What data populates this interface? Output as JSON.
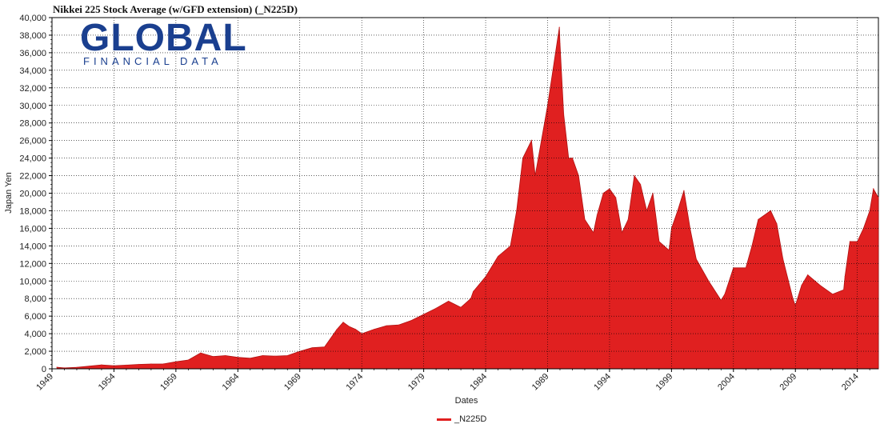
{
  "title": "Nikkei 225 Stock Average (w/GFD extension) (_N225D)",
  "logo": {
    "main": "GLOBAL",
    "sub": "FINANCIAL DATA"
  },
  "colors": {
    "series": "#e02020",
    "grid": "#000000",
    "text": "#222222",
    "logo": "#1a3f8f"
  },
  "chart_data": {
    "type": "area",
    "title": "Nikkei 225 Stock Average (w/GFD extension) (_N225D)",
    "xlabel": "Dates",
    "ylabel": "Japan Yen",
    "xlim": [
      1949,
      2015.7
    ],
    "ylim": [
      0,
      40000
    ],
    "grid": true,
    "legend_position": "bottom-center",
    "x_ticks": [
      "1949",
      "1954",
      "1959",
      "1964",
      "1969",
      "1974",
      "1979",
      "1984",
      "1989",
      "1994",
      "1999",
      "2004",
      "2009",
      "2014"
    ],
    "y_ticks": [
      "0",
      "2,000",
      "4,000",
      "6,000",
      "8,000",
      "10,000",
      "12,000",
      "14,000",
      "16,000",
      "18,000",
      "20,000",
      "22,000",
      "24,000",
      "26,000",
      "28,000",
      "30,000",
      "32,000",
      "34,000",
      "36,000",
      "38,000",
      "40,000"
    ],
    "series": [
      {
        "name": "_N225D",
        "x": [
          1949.4,
          1950,
          1951,
          1952,
          1953,
          1954,
          1955,
          1956,
          1957,
          1958,
          1959,
          1960,
          1961,
          1962,
          1963,
          1964,
          1965,
          1966,
          1967,
          1968,
          1969,
          1970,
          1971,
          1972,
          1972.5,
          1973,
          1973.5,
          1974,
          1974.8,
          1975,
          1976,
          1977,
          1978,
          1979,
          1980,
          1981,
          1982,
          1982.8,
          1983,
          1984,
          1985,
          1986,
          1986.5,
          1987,
          1987.7,
          1988,
          1989,
          1989.95,
          1990,
          1990.3,
          1990.7,
          1991,
          1991.5,
          1992,
          1992.7,
          1993,
          1993.5,
          1994,
          1994.5,
          1995,
          1995.5,
          1996,
          1996.5,
          1997,
          1997.5,
          1998,
          1998.8,
          1999,
          1999.5,
          2000,
          2000.5,
          2001,
          2002,
          2003,
          2003.3,
          2004,
          2005,
          2005.5,
          2006,
          2007,
          2007.5,
          2008,
          2008.8,
          2009,
          2009.5,
          2010,
          2011,
          2012,
          2012.9,
          2013,
          2013.4,
          2014,
          2014.5,
          2015,
          2015.3,
          2015.7
        ],
        "values": [
          170,
          100,
          160,
          300,
          450,
          350,
          420,
          500,
          550,
          560,
          800,
          1000,
          1800,
          1400,
          1500,
          1300,
          1200,
          1500,
          1450,
          1500,
          2000,
          2400,
          2500,
          4500,
          5300,
          4800,
          4500,
          4000,
          4400,
          4500,
          4900,
          5000,
          5500,
          6200,
          6900,
          7700,
          7000,
          8000,
          8800,
          10500,
          12800,
          14000,
          18000,
          24000,
          26000,
          22000,
          30000,
          38900,
          37000,
          29000,
          24000,
          24000,
          22000,
          17000,
          15500,
          17500,
          20000,
          20500,
          19500,
          15500,
          17000,
          22000,
          21000,
          18000,
          20000,
          14500,
          13500,
          16000,
          18000,
          20300,
          16000,
          12500,
          10000,
          7800,
          8500,
          11500,
          11500,
          14000,
          17000,
          18000,
          16500,
          12500,
          8000,
          7200,
          9500,
          10700,
          9500,
          8500,
          9000,
          10500,
          14500,
          14500,
          16000,
          18000,
          20500,
          19500
        ]
      }
    ]
  },
  "legend": {
    "label": "_N225D"
  }
}
